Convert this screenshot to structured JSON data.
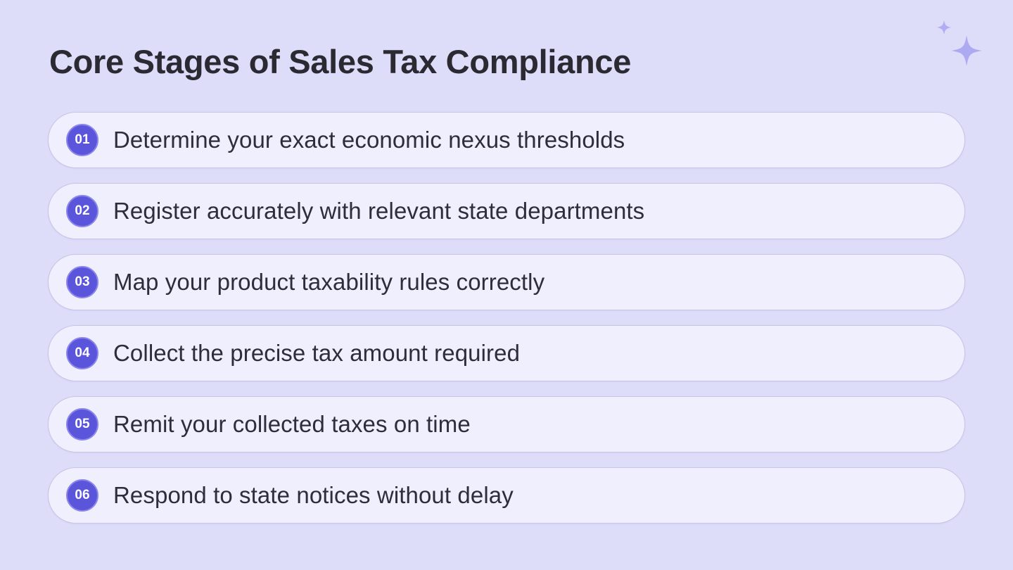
{
  "slide": {
    "title": "Core Stages of Sales Tax Compliance",
    "decoration_icon": "sparkles-icon",
    "colors": {
      "background": "#dddcf9",
      "item_background": "#f0effd",
      "badge": "#5b55dc",
      "sparkle": "#aeaaf2",
      "title_text": "#2b2a33"
    },
    "stages": [
      {
        "number": "01",
        "text": "Determine your exact economic nexus thresholds"
      },
      {
        "number": "02",
        "text": "Register accurately with relevant state departments"
      },
      {
        "number": "03",
        "text": "Map your product taxability rules correctly"
      },
      {
        "number": "04",
        "text": "Collect the precise tax amount required"
      },
      {
        "number": "05",
        "text": "Remit your collected taxes on time"
      },
      {
        "number": "06",
        "text": "Respond to state notices without delay"
      }
    ]
  }
}
